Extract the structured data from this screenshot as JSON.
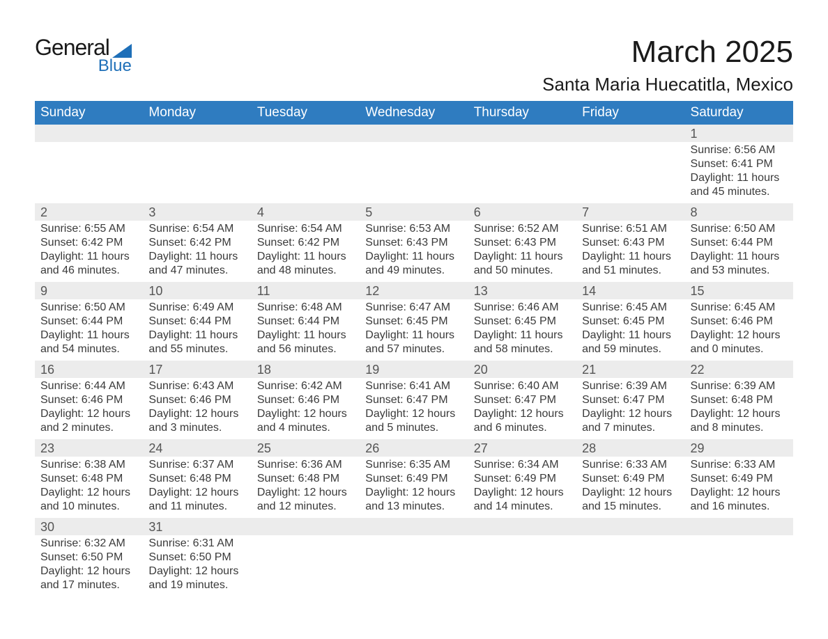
{
  "brand": {
    "name1": "General",
    "name2": "Blue",
    "color1": "#1a1a1a",
    "color2": "#1e6fb8"
  },
  "title": "March 2025",
  "location": "Santa Maria Huecatitla, Mexico",
  "colors": {
    "header_bg": "#2f7cc0",
    "header_text": "#ffffff",
    "daynum_bg": "#ececec",
    "row_border": "#2f7cc0",
    "text": "#3a3a3a"
  },
  "weekdays": [
    "Sunday",
    "Monday",
    "Tuesday",
    "Wednesday",
    "Thursday",
    "Friday",
    "Saturday"
  ],
  "weeks": [
    [
      null,
      null,
      null,
      null,
      null,
      null,
      {
        "n": "1",
        "sunrise": "Sunrise: 6:56 AM",
        "sunset": "Sunset: 6:41 PM",
        "daylight": "Daylight: 11 hours and 45 minutes."
      }
    ],
    [
      {
        "n": "2",
        "sunrise": "Sunrise: 6:55 AM",
        "sunset": "Sunset: 6:42 PM",
        "daylight": "Daylight: 11 hours and 46 minutes."
      },
      {
        "n": "3",
        "sunrise": "Sunrise: 6:54 AM",
        "sunset": "Sunset: 6:42 PM",
        "daylight": "Daylight: 11 hours and 47 minutes."
      },
      {
        "n": "4",
        "sunrise": "Sunrise: 6:54 AM",
        "sunset": "Sunset: 6:42 PM",
        "daylight": "Daylight: 11 hours and 48 minutes."
      },
      {
        "n": "5",
        "sunrise": "Sunrise: 6:53 AM",
        "sunset": "Sunset: 6:43 PM",
        "daylight": "Daylight: 11 hours and 49 minutes."
      },
      {
        "n": "6",
        "sunrise": "Sunrise: 6:52 AM",
        "sunset": "Sunset: 6:43 PM",
        "daylight": "Daylight: 11 hours and 50 minutes."
      },
      {
        "n": "7",
        "sunrise": "Sunrise: 6:51 AM",
        "sunset": "Sunset: 6:43 PM",
        "daylight": "Daylight: 11 hours and 51 minutes."
      },
      {
        "n": "8",
        "sunrise": "Sunrise: 6:50 AM",
        "sunset": "Sunset: 6:44 PM",
        "daylight": "Daylight: 11 hours and 53 minutes."
      }
    ],
    [
      {
        "n": "9",
        "sunrise": "Sunrise: 6:50 AM",
        "sunset": "Sunset: 6:44 PM",
        "daylight": "Daylight: 11 hours and 54 minutes."
      },
      {
        "n": "10",
        "sunrise": "Sunrise: 6:49 AM",
        "sunset": "Sunset: 6:44 PM",
        "daylight": "Daylight: 11 hours and 55 minutes."
      },
      {
        "n": "11",
        "sunrise": "Sunrise: 6:48 AM",
        "sunset": "Sunset: 6:44 PM",
        "daylight": "Daylight: 11 hours and 56 minutes."
      },
      {
        "n": "12",
        "sunrise": "Sunrise: 6:47 AM",
        "sunset": "Sunset: 6:45 PM",
        "daylight": "Daylight: 11 hours and 57 minutes."
      },
      {
        "n": "13",
        "sunrise": "Sunrise: 6:46 AM",
        "sunset": "Sunset: 6:45 PM",
        "daylight": "Daylight: 11 hours and 58 minutes."
      },
      {
        "n": "14",
        "sunrise": "Sunrise: 6:45 AM",
        "sunset": "Sunset: 6:45 PM",
        "daylight": "Daylight: 11 hours and 59 minutes."
      },
      {
        "n": "15",
        "sunrise": "Sunrise: 6:45 AM",
        "sunset": "Sunset: 6:46 PM",
        "daylight": "Daylight: 12 hours and 0 minutes."
      }
    ],
    [
      {
        "n": "16",
        "sunrise": "Sunrise: 6:44 AM",
        "sunset": "Sunset: 6:46 PM",
        "daylight": "Daylight: 12 hours and 2 minutes."
      },
      {
        "n": "17",
        "sunrise": "Sunrise: 6:43 AM",
        "sunset": "Sunset: 6:46 PM",
        "daylight": "Daylight: 12 hours and 3 minutes."
      },
      {
        "n": "18",
        "sunrise": "Sunrise: 6:42 AM",
        "sunset": "Sunset: 6:46 PM",
        "daylight": "Daylight: 12 hours and 4 minutes."
      },
      {
        "n": "19",
        "sunrise": "Sunrise: 6:41 AM",
        "sunset": "Sunset: 6:47 PM",
        "daylight": "Daylight: 12 hours and 5 minutes."
      },
      {
        "n": "20",
        "sunrise": "Sunrise: 6:40 AM",
        "sunset": "Sunset: 6:47 PM",
        "daylight": "Daylight: 12 hours and 6 minutes."
      },
      {
        "n": "21",
        "sunrise": "Sunrise: 6:39 AM",
        "sunset": "Sunset: 6:47 PM",
        "daylight": "Daylight: 12 hours and 7 minutes."
      },
      {
        "n": "22",
        "sunrise": "Sunrise: 6:39 AM",
        "sunset": "Sunset: 6:48 PM",
        "daylight": "Daylight: 12 hours and 8 minutes."
      }
    ],
    [
      {
        "n": "23",
        "sunrise": "Sunrise: 6:38 AM",
        "sunset": "Sunset: 6:48 PM",
        "daylight": "Daylight: 12 hours and 10 minutes."
      },
      {
        "n": "24",
        "sunrise": "Sunrise: 6:37 AM",
        "sunset": "Sunset: 6:48 PM",
        "daylight": "Daylight: 12 hours and 11 minutes."
      },
      {
        "n": "25",
        "sunrise": "Sunrise: 6:36 AM",
        "sunset": "Sunset: 6:48 PM",
        "daylight": "Daylight: 12 hours and 12 minutes."
      },
      {
        "n": "26",
        "sunrise": "Sunrise: 6:35 AM",
        "sunset": "Sunset: 6:49 PM",
        "daylight": "Daylight: 12 hours and 13 minutes."
      },
      {
        "n": "27",
        "sunrise": "Sunrise: 6:34 AM",
        "sunset": "Sunset: 6:49 PM",
        "daylight": "Daylight: 12 hours and 14 minutes."
      },
      {
        "n": "28",
        "sunrise": "Sunrise: 6:33 AM",
        "sunset": "Sunset: 6:49 PM",
        "daylight": "Daylight: 12 hours and 15 minutes."
      },
      {
        "n": "29",
        "sunrise": "Sunrise: 6:33 AM",
        "sunset": "Sunset: 6:49 PM",
        "daylight": "Daylight: 12 hours and 16 minutes."
      }
    ],
    [
      {
        "n": "30",
        "sunrise": "Sunrise: 6:32 AM",
        "sunset": "Sunset: 6:50 PM",
        "daylight": "Daylight: 12 hours and 17 minutes."
      },
      {
        "n": "31",
        "sunrise": "Sunrise: 6:31 AM",
        "sunset": "Sunset: 6:50 PM",
        "daylight": "Daylight: 12 hours and 19 minutes."
      },
      null,
      null,
      null,
      null,
      null
    ]
  ]
}
